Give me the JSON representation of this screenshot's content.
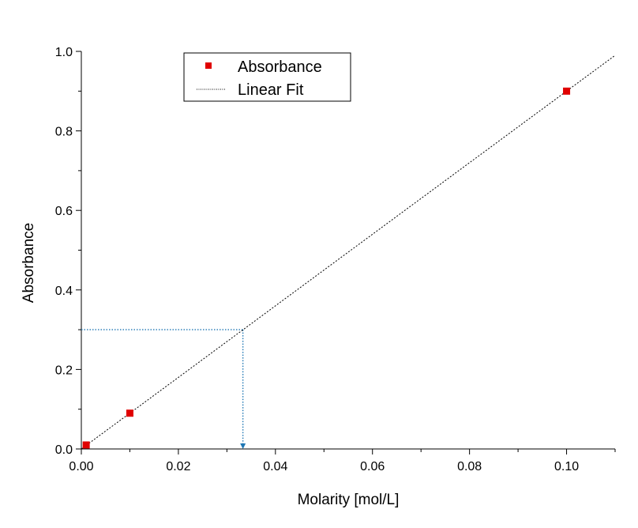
{
  "chart_data": {
    "type": "scatter",
    "xlabel": "Molarity [mol/L]",
    "ylabel": "Absorbance",
    "xlim": [
      0,
      0.11
    ],
    "ylim": [
      0,
      1.0
    ],
    "x_ticks": [
      0.0,
      0.02,
      0.04,
      0.06,
      0.08,
      0.1
    ],
    "x_tick_labels": [
      "0.00",
      "0.02",
      "0.04",
      "0.06",
      "0.08",
      "0.10"
    ],
    "y_ticks": [
      0.0,
      0.2,
      0.4,
      0.6,
      0.8,
      1.0
    ],
    "y_tick_labels": [
      "0.0",
      "0.2",
      "0.4",
      "0.6",
      "0.8",
      "1.0"
    ],
    "grid": false,
    "legend_position": "top-left",
    "series": [
      {
        "name": "Absorbance",
        "kind": "scatter",
        "marker": "square",
        "color": "#e00000",
        "x": [
          0.001,
          0.01,
          0.1
        ],
        "y": [
          0.01,
          0.09,
          0.9
        ]
      },
      {
        "name": "Linear Fit",
        "kind": "line",
        "style": "dotted",
        "color": "#000000",
        "slope": 9.0,
        "intercept": 0.0,
        "x": [
          0.0,
          0.11
        ],
        "y": [
          0.0,
          0.99
        ]
      }
    ],
    "annotations": [
      {
        "kind": "guide",
        "color": "#1f77b4",
        "style": "dotted",
        "y_value": 0.3,
        "x_value": 0.0333,
        "arrow": "down"
      }
    ]
  }
}
